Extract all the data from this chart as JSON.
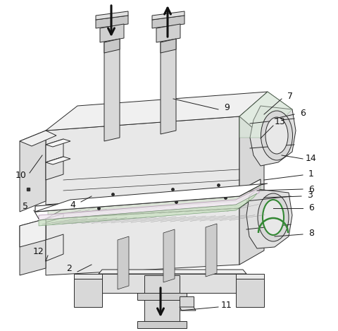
{
  "bg_color": "#ffffff",
  "fig_width": 4.8,
  "fig_height": 4.69,
  "dpi": 100,
  "lc": "#2a2a2a",
  "lw": 0.7,
  "fill_light": "#e8e8e8",
  "fill_lighter": "#f0f0f0",
  "fill_white": "#ffffff",
  "fill_pink": "#f0e8f0",
  "fill_green": "#c8e8c0",
  "fill_mesh": "#c0c8c0",
  "arrow_color": "#111111"
}
